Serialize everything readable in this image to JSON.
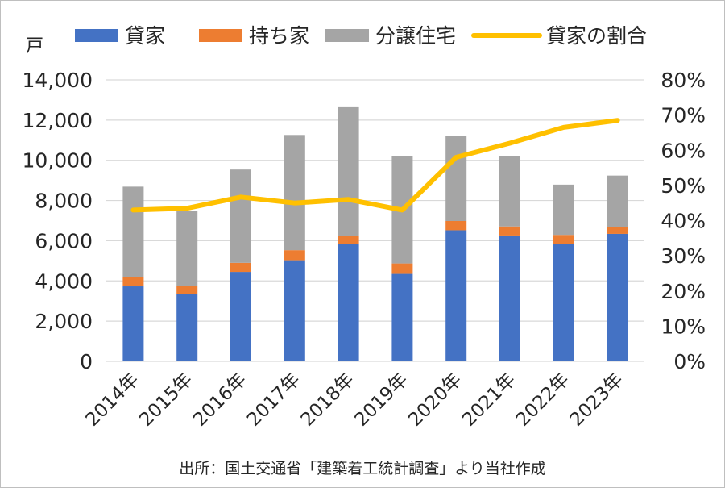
{
  "chart_data": {
    "type": "bar",
    "stacked": true,
    "categories": [
      "2014年",
      "2015年",
      "2016年",
      "2017年",
      "2018年",
      "2019年",
      "2020年",
      "2021年",
      "2022年",
      "2023年"
    ],
    "series": [
      {
        "name": "貸家",
        "axis": "left",
        "color": "#4472C4",
        "values": [
          3730,
          3350,
          4450,
          5030,
          5820,
          4350,
          6520,
          6260,
          5850,
          6340
        ]
      },
      {
        "name": "持ち家",
        "axis": "left",
        "color": "#ED7D31",
        "values": [
          460,
          420,
          450,
          500,
          420,
          520,
          460,
          450,
          440,
          350
        ]
      },
      {
        "name": "分譲住宅",
        "axis": "left",
        "color": "#A5A5A5",
        "values": [
          4500,
          3730,
          4640,
          5730,
          6400,
          5330,
          4250,
          3490,
          2500,
          2550
        ]
      },
      {
        "name": "貸家の割合",
        "type": "line",
        "axis": "right",
        "color": "#FFC000",
        "values": [
          0.43,
          0.435,
          0.467,
          0.45,
          0.46,
          0.43,
          0.58,
          0.62,
          0.665,
          0.685
        ]
      }
    ],
    "yunit": "戸",
    "ylim": [
      0,
      14000
    ],
    "yticks": [
      "14,000",
      "12,000",
      "10,000",
      "8,000",
      "6,000",
      "4,000",
      "2,000",
      "0"
    ],
    "y2lim": [
      0,
      0.8
    ],
    "y2ticks": [
      "80%",
      "70%",
      "60%",
      "50%",
      "40%",
      "30%",
      "20%",
      "10%",
      "0%"
    ],
    "grid": true,
    "legend_position": "top"
  },
  "source": "出所：国土交通省「建築着工統計調査」より当社作成"
}
